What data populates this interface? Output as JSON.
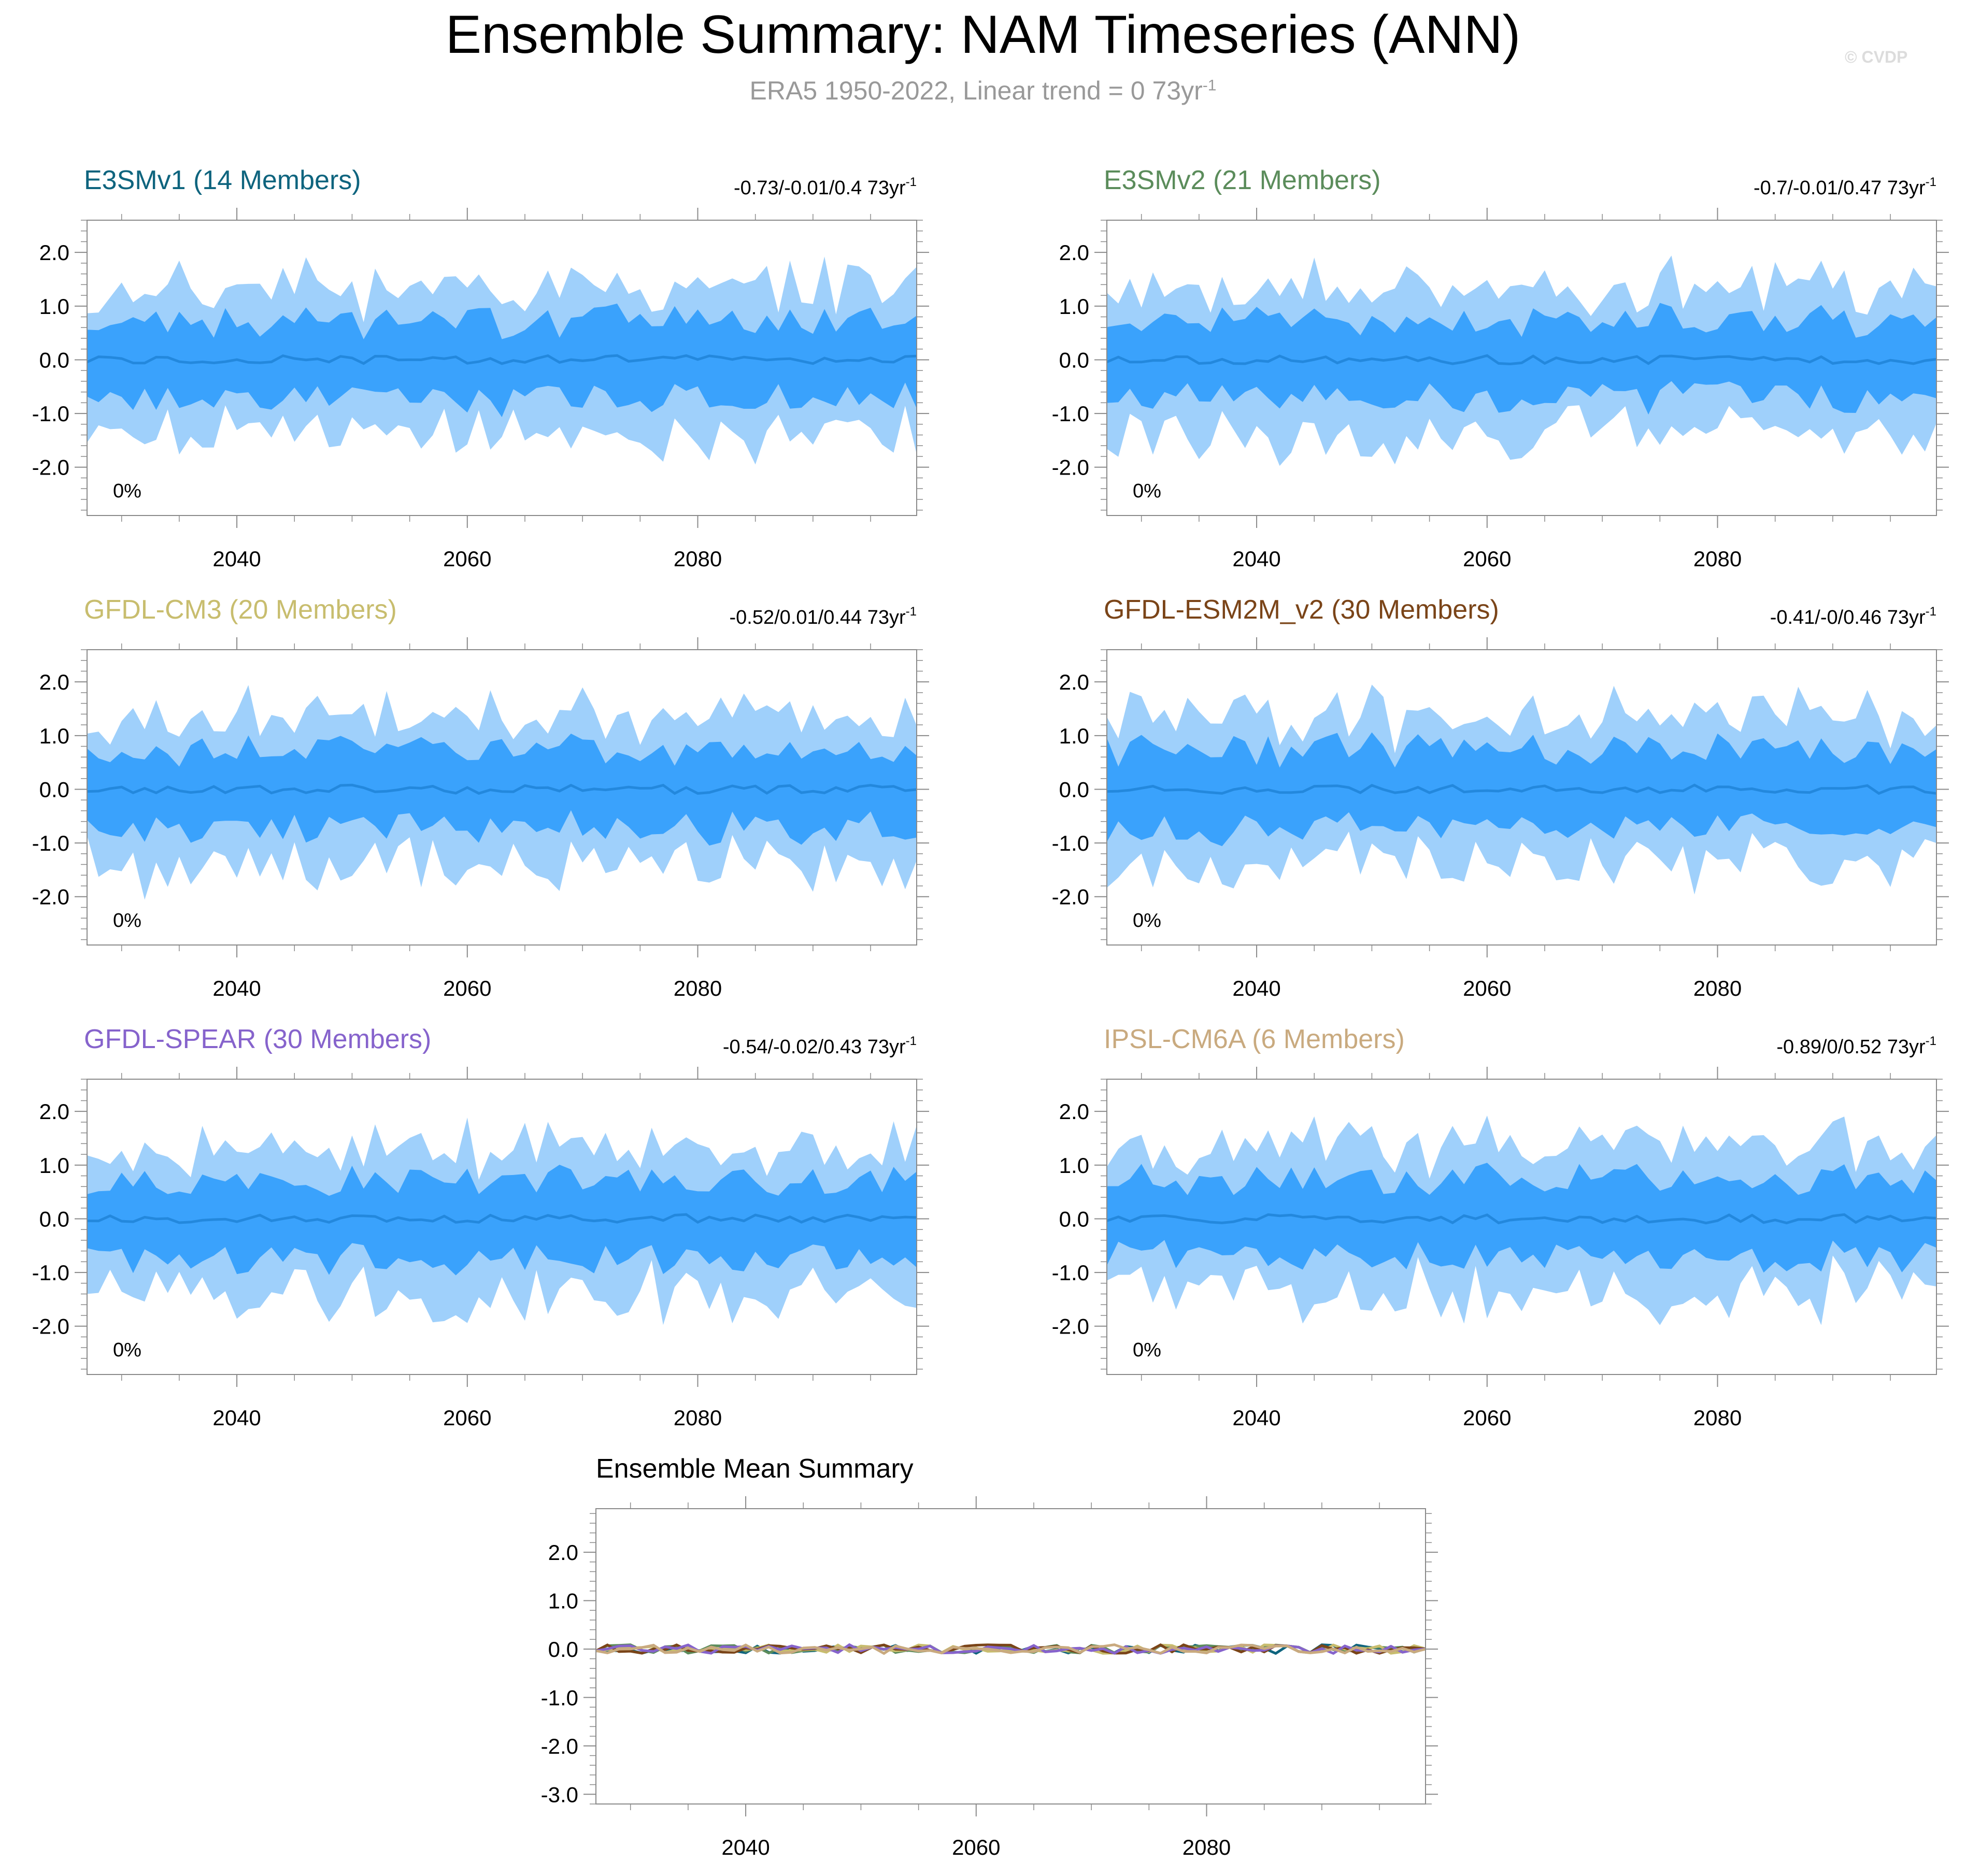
{
  "title": "Ensemble Summary: NAM Timeseries (ANN)",
  "subtitle": {
    "text": "ERA5 1950-2022, Linear trend = 0 73yr",
    "exp": "-1"
  },
  "watermark": "© CVDP",
  "colors": {
    "outer_band": "#9fd0fb",
    "inner_band": "#3aa2fc",
    "mean_line": "#2388dd"
  },
  "chart_data": [
    {
      "type": "area",
      "title": "E3SMv1 (14 Members)",
      "title_color": "#0e647e",
      "trend_label": "-0.73/-0.01/0.4 73yr",
      "trend_exp": "-1",
      "pct_label": "0%",
      "x_range": [
        2027,
        2099
      ],
      "ylim": [
        -2.9,
        2.6
      ],
      "yticks": [
        "2.0",
        "1.0",
        "0.0",
        "-1.0",
        "-2.0"
      ],
      "ytick_values": [
        2,
        1,
        0,
        -1,
        -2
      ],
      "xticks": [
        2040,
        2060,
        2080
      ],
      "seed": 11
    },
    {
      "type": "area",
      "title": "E3SMv2 (21 Members)",
      "title_color": "#5b8c5b",
      "trend_label": "-0.7/-0.01/0.47 73yr",
      "trend_exp": "-1",
      "pct_label": "0%",
      "x_range": [
        2027,
        2099
      ],
      "ylim": [
        -2.9,
        2.6
      ],
      "yticks": [
        "2.0",
        "1.0",
        "0.0",
        "-1.0",
        "-2.0"
      ],
      "ytick_values": [
        2,
        1,
        0,
        -1,
        -2
      ],
      "xticks": [
        2040,
        2060,
        2080
      ],
      "seed": 23
    },
    {
      "type": "area",
      "title": "GFDL-CM3 (20 Members)",
      "title_color": "#c8bd6e",
      "trend_label": "-0.52/0.01/0.44 73yr",
      "trend_exp": "-1",
      "pct_label": "0%",
      "x_range": [
        2027,
        2099
      ],
      "ylim": [
        -2.9,
        2.6
      ],
      "yticks": [
        "2.0",
        "1.0",
        "0.0",
        "-1.0",
        "-2.0"
      ],
      "ytick_values": [
        2,
        1,
        0,
        -1,
        -2
      ],
      "xticks": [
        2040,
        2060,
        2080
      ],
      "seed": 37
    },
    {
      "type": "area",
      "title": "GFDL-ESM2M_v2 (30 Members)",
      "title_color": "#7a4418",
      "trend_label": "-0.41/-0/0.46 73yr",
      "trend_exp": "-1",
      "pct_label": "0%",
      "x_range": [
        2027,
        2099
      ],
      "ylim": [
        -2.9,
        2.6
      ],
      "yticks": [
        "2.0",
        "1.0",
        "0.0",
        "-1.0",
        "-2.0"
      ],
      "ytick_values": [
        2,
        1,
        0,
        -1,
        -2
      ],
      "xticks": [
        2040,
        2060,
        2080
      ],
      "seed": 41
    },
    {
      "type": "area",
      "title": "GFDL-SPEAR (30 Members)",
      "title_color": "#8663cc",
      "trend_label": "-0.54/-0.02/0.43 73yr",
      "trend_exp": "-1",
      "pct_label": "0%",
      "x_range": [
        2027,
        2099
      ],
      "ylim": [
        -2.9,
        2.6
      ],
      "yticks": [
        "2.0",
        "1.0",
        "0.0",
        "-1.0",
        "-2.0"
      ],
      "ytick_values": [
        2,
        1,
        0,
        -1,
        -2
      ],
      "xticks": [
        2040,
        2060,
        2080
      ],
      "seed": 53
    },
    {
      "type": "area",
      "title": "IPSL-CM6A (6 Members)",
      "title_color": "#c9aa7f",
      "trend_label": "-0.89/0/0.52 73yr",
      "trend_exp": "-1",
      "pct_label": "0%",
      "x_range": [
        2027,
        2099
      ],
      "ylim": [
        -2.9,
        2.6
      ],
      "yticks": [
        "2.0",
        "1.0",
        "0.0",
        "-1.0",
        "-2.0"
      ],
      "ytick_values": [
        2,
        1,
        0,
        -1,
        -2
      ],
      "xticks": [
        2040,
        2060,
        2080
      ],
      "seed": 67
    },
    {
      "type": "line",
      "title": "Ensemble Mean Summary",
      "title_color": "#000000",
      "x_range": [
        2027,
        2099
      ],
      "ylim": [
        -3.2,
        2.9
      ],
      "yticks": [
        "2.0",
        "1.0",
        "0.0",
        "-1.0",
        "-2.0",
        "-3.0"
      ],
      "ytick_values": [
        2,
        1,
        0,
        -1,
        -2,
        -3
      ],
      "xticks": [
        2040,
        2060,
        2080
      ],
      "series": [
        {
          "name": "E3SMv1",
          "color": "#0e647e"
        },
        {
          "name": "E3SMv2",
          "color": "#5b8c5b"
        },
        {
          "name": "GFDL-CM3",
          "color": "#c8bd6e"
        },
        {
          "name": "GFDL-ESM2M_v2",
          "color": "#7a4418"
        },
        {
          "name": "GFDL-SPEAR",
          "color": "#8663cc"
        },
        {
          "name": "IPSL-CM6A",
          "color": "#c9aa7f"
        }
      ]
    }
  ]
}
